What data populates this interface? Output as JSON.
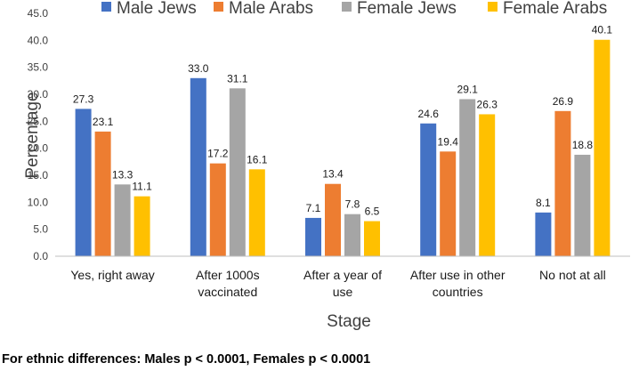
{
  "chart_data": {
    "type": "bar",
    "title": "",
    "xlabel": "Stage",
    "ylabel": "Percentage",
    "ylim": [
      0,
      45
    ],
    "ytick_step": 5,
    "ytick_labels": [
      "0.0",
      "5.0",
      "10.0",
      "15.0",
      "20.0",
      "25.0",
      "30.0",
      "35.0",
      "40.0",
      "45.0"
    ],
    "grid": false,
    "legend_position": "top",
    "categories": [
      [
        "Yes, right away"
      ],
      [
        "After 1000s",
        "vaccinated"
      ],
      [
        "After a year of",
        "use"
      ],
      [
        "After use in other",
        "countries"
      ],
      [
        "No not at all"
      ]
    ],
    "series": [
      {
        "name": "Male Jews",
        "color": "#4472C4",
        "values": [
          27.3,
          33.0,
          7.1,
          24.6,
          8.1
        ],
        "labels": [
          "27.3",
          "33.0",
          "7.1",
          "24.6",
          "8.1"
        ]
      },
      {
        "name": "Male Arabs",
        "color": "#ED7D31",
        "values": [
          23.1,
          17.2,
          13.4,
          19.4,
          26.9
        ],
        "labels": [
          "23.1",
          "17.2",
          "13.4",
          "19.4",
          "26.9"
        ]
      },
      {
        "name": "Female Jews",
        "color": "#A5A5A5",
        "values": [
          13.3,
          31.1,
          7.8,
          29.1,
          18.8
        ],
        "labels": [
          "13.3",
          "31.1",
          "7.8",
          "29.1",
          "18.8"
        ]
      },
      {
        "name": "Female Arabs",
        "color": "#FFC000",
        "values": [
          11.1,
          16.1,
          6.5,
          26.3,
          40.1
        ],
        "labels": [
          "11.1",
          "16.1",
          "6.5",
          "26.3",
          "40.1"
        ]
      }
    ]
  },
  "footnote": "For ethnic differences: Males p < 0.0001, Females p < 0.0001"
}
